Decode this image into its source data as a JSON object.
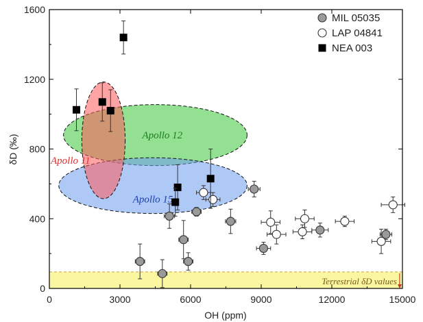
{
  "chart_data": {
    "type": "scatter",
    "xlabel": "OH (ppm)",
    "ylabel": "δD (‰)",
    "xlim": [
      0,
      15000
    ],
    "ylim": [
      0,
      1600
    ],
    "xticks": [
      0,
      3000,
      6000,
      9000,
      12000,
      15000
    ],
    "yticks": [
      0,
      400,
      800,
      1200,
      1600
    ],
    "grid": false,
    "legend_position": "top-right",
    "series": [
      {
        "name": "MIL 05035",
        "marker": "circle",
        "fill": "#9a9a9a",
        "points": [
          {
            "x": 3850,
            "y": 155,
            "xerr": 200,
            "yerr": 100
          },
          {
            "x": 4800,
            "y": 85,
            "xerr": 200,
            "yerr": 80
          },
          {
            "x": 5100,
            "y": 415,
            "xerr": 220,
            "yerr": 70
          },
          {
            "x": 5700,
            "y": 280,
            "xerr": 200,
            "yerr": 110
          },
          {
            "x": 5900,
            "y": 155,
            "xerr": 200,
            "yerr": 50
          },
          {
            "x": 6250,
            "y": 440,
            "xerr": 200,
            "yerr": 25
          },
          {
            "x": 7700,
            "y": 385,
            "xerr": 220,
            "yerr": 70
          },
          {
            "x": 8700,
            "y": 570,
            "xerr": 250,
            "yerr": 45
          },
          {
            "x": 9100,
            "y": 230,
            "xerr": 300,
            "yerr": 35
          },
          {
            "x": 11500,
            "y": 335,
            "xerr": 350,
            "yerr": 40
          },
          {
            "x": 14300,
            "y": 310,
            "xerr": 250,
            "yerr": 30
          }
        ]
      },
      {
        "name": "LAP 04841",
        "marker": "circle-open",
        "fill": "#ffffff",
        "points": [
          {
            "x": 6550,
            "y": 550,
            "xerr": 300,
            "yerr": 40
          },
          {
            "x": 6950,
            "y": 510,
            "xerr": 300,
            "yerr": 40
          },
          {
            "x": 9400,
            "y": 380,
            "xerr": 400,
            "yerr": 65
          },
          {
            "x": 9650,
            "y": 310,
            "xerr": 400,
            "yerr": 55
          },
          {
            "x": 10750,
            "y": 325,
            "xerr": 400,
            "yerr": 40
          },
          {
            "x": 10850,
            "y": 400,
            "xerr": 400,
            "yerr": 50
          },
          {
            "x": 12550,
            "y": 385,
            "xerr": 400,
            "yerr": 30
          },
          {
            "x": 14100,
            "y": 270,
            "xerr": 400,
            "yerr": 70
          },
          {
            "x": 14600,
            "y": 480,
            "xerr": 500,
            "yerr": 45
          }
        ]
      },
      {
        "name": "NEA 003",
        "marker": "square",
        "fill": "#000000",
        "points": [
          {
            "x": 1150,
            "y": 1025,
            "xerr": 0,
            "yerr": 120
          },
          {
            "x": 2250,
            "y": 1070,
            "xerr": 0,
            "yerr": 110
          },
          {
            "x": 2600,
            "y": 1020,
            "xerr": 0,
            "yerr": 120
          },
          {
            "x": 3150,
            "y": 1440,
            "xerr": 0,
            "yerr": 95
          },
          {
            "x": 5450,
            "y": 580,
            "xerr": 0,
            "yerr": 130
          },
          {
            "x": 5350,
            "y": 495,
            "xerr": 0,
            "yerr": 80
          },
          {
            "x": 6850,
            "y": 630,
            "xerr": 0,
            "yerr": 170
          }
        ]
      }
    ],
    "regions": [
      {
        "label": "Apollo 12",
        "cx": 4500,
        "cy": 880,
        "rx": 3900,
        "ry": 175,
        "fill": "#3ac63a",
        "text_color": "#1e7d1e"
      },
      {
        "label": "Apollo 15",
        "cx": 4400,
        "cy": 590,
        "rx": 4000,
        "ry": 160,
        "fill": "#6e9df0",
        "text_color": "#1a3ea8"
      },
      {
        "label": "Apollo 11",
        "cx": 2300,
        "cy": 850,
        "rx": 920,
        "ry": 335,
        "fill": "#ff5a5a",
        "text_color": "#e03030"
      }
    ],
    "band": {
      "label": "Terrestrial δD values",
      "y0": 0,
      "y1": 95,
      "fill": "#fbf7a0"
    }
  }
}
